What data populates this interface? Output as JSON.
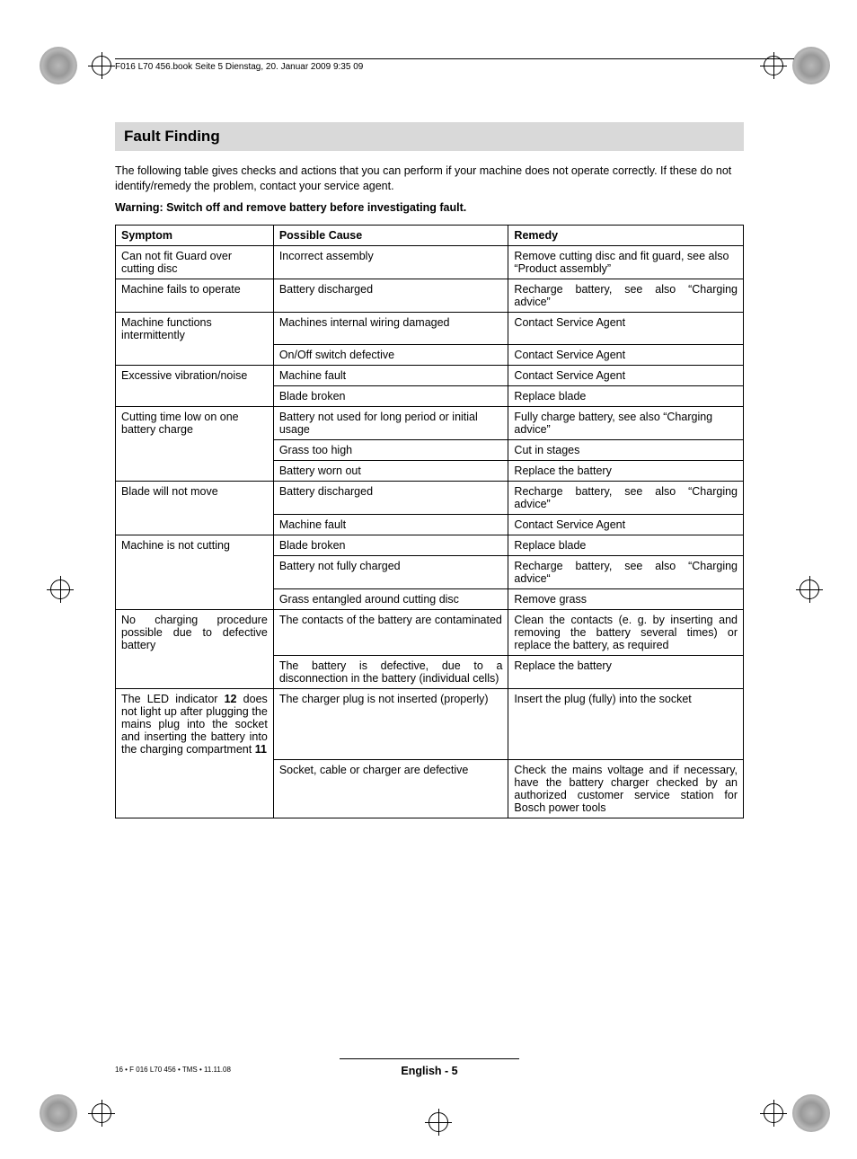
{
  "header": {
    "running_head": "F016 L70 456.book  Seite 5  Dienstag, 20. Januar 2009  9:35 09"
  },
  "section": {
    "title": "Fault Finding",
    "intro": "The following table gives checks and actions that you can perform if your machine does not operate correctly. If these do not identify/remedy the problem, contact your service agent.",
    "warning": "Warning: Switch off and remove battery before investigating fault."
  },
  "table": {
    "headers": {
      "symptom": "Symptom",
      "cause": "Possible Cause",
      "remedy": "Remedy"
    },
    "rows": [
      {
        "symptom": "Can not fit Guard over cutting disc",
        "cause": "Incorrect assembly",
        "remedy": "Remove cutting disc and fit guard, see also “Product assembly”"
      },
      {
        "symptom": "Machine fails to operate",
        "cause": "Battery discharged",
        "remedy": "Recharge battery, see also “Charging advice”",
        "remedy_justify": true
      },
      {
        "symptom": "Machine functions intermittently",
        "cause": "Machines internal wiring damaged",
        "remedy": "Contact Service Agent",
        "group_open": true
      },
      {
        "symptom": "",
        "cause": "On/Off switch defective",
        "remedy": "Contact Service Agent",
        "group_close": true
      },
      {
        "symptom": "Excessive vibration/noise",
        "cause": "Machine fault",
        "remedy": "Contact Service Agent",
        "group_open": true
      },
      {
        "symptom": "",
        "cause": "Blade broken",
        "remedy": "Replace blade",
        "group_close": true
      },
      {
        "symptom": "Cutting time low on one battery charge",
        "cause": "Battery not used for long period or initial usage",
        "remedy": "Fully charge battery, see also “Charging advice”",
        "group_open": true
      },
      {
        "symptom": "",
        "cause": "Grass too high",
        "remedy": "Cut in stages",
        "group_mid": true
      },
      {
        "symptom": "",
        "cause": "Battery worn out",
        "remedy": "Replace the battery",
        "group_close": true
      },
      {
        "symptom": "Blade will not move",
        "cause": "Battery discharged",
        "remedy": "Recharge battery, see also “Charging advice”",
        "remedy_justify": true,
        "group_open": true
      },
      {
        "symptom": "",
        "cause": "Machine fault",
        "remedy": "Contact Service Agent",
        "group_close": true
      },
      {
        "symptom": "Machine is not cutting",
        "cause": "Blade broken",
        "remedy": "Replace blade",
        "group_open": true
      },
      {
        "symptom": "",
        "cause": "Battery not fully charged",
        "remedy": "Recharge battery, see also “Charging advice“",
        "remedy_justify": true,
        "group_mid": true
      },
      {
        "symptom": "",
        "cause": "Grass entangled around cutting disc",
        "remedy": "Remove grass",
        "group_close": true
      },
      {
        "symptom": "No charging procedure possible due to defective battery",
        "symptom_justify": true,
        "cause": "The contacts of the battery are contaminated",
        "cause_justify": true,
        "remedy": "Clean the contacts (e. g. by inserting and removing the battery several times) or replace the battery, as required",
        "remedy_justify": true,
        "group_open": true
      },
      {
        "symptom": "",
        "cause": "The battery is defective, due to a disconnection in the battery (individual cells)",
        "cause_justify": true,
        "remedy": "Replace the battery",
        "group_close": true
      },
      {
        "symptom_html": "The LED indicator <b>12</b> does not light up after plugging the mains plug into the socket and inserting the battery into the charging compartment <b>11</b>",
        "symptom_justify": true,
        "cause": "The charger plug is not inserted (properly)",
        "remedy": "Insert the plug (fully) into the socket",
        "group_open": true
      },
      {
        "symptom": "",
        "cause": "Socket, cable or charger are defective",
        "remedy": "Check the mains voltage and if necessary, have the battery charger checked by an authorized customer service station for Bosch power tools",
        "remedy_justify": true,
        "group_close": true
      }
    ]
  },
  "footer": {
    "page": "English - 5",
    "small": "16 • F 016 L70 456 • TMS • 11.11.08"
  }
}
